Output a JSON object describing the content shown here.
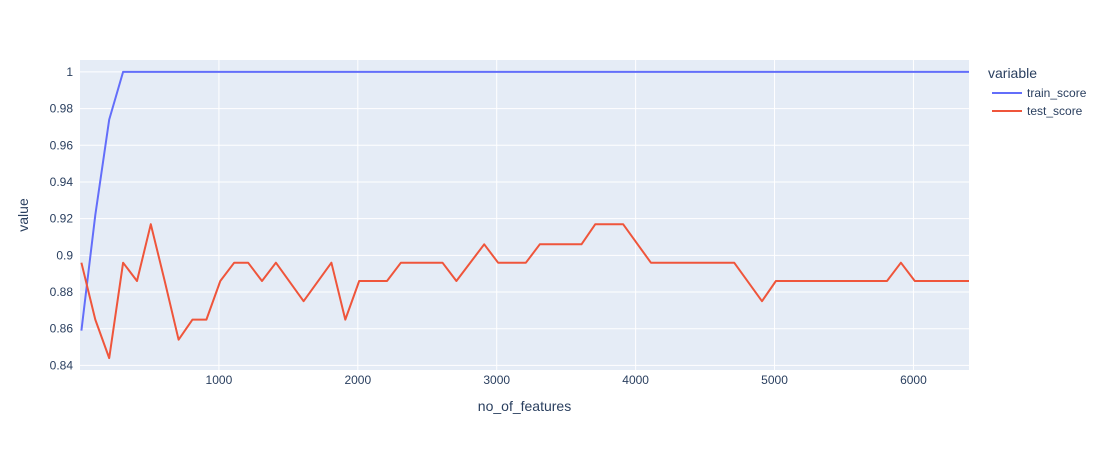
{
  "chart_data": {
    "type": "line",
    "xlabel": "no_of_features",
    "ylabel": "value",
    "xlim": [
      0,
      6400
    ],
    "ylim": [
      0.8375,
      1.0065
    ],
    "xticks": [
      1000,
      2000,
      3000,
      4000,
      5000,
      6000
    ],
    "xtick_labels": [
      "1000",
      "2000",
      "3000",
      "4000",
      "5000",
      "6000"
    ],
    "yticks": [
      0.84,
      0.86,
      0.88,
      0.9,
      0.92,
      0.94,
      0.96,
      0.98,
      1
    ],
    "ytick_labels": [
      "0.84",
      "0.86",
      "0.88",
      "0.9",
      "0.92",
      "0.94",
      "0.96",
      "0.98",
      "1"
    ],
    "grid": true,
    "background": "#e5ecf6",
    "legend": {
      "title": "variable",
      "position": "right"
    },
    "series": [
      {
        "name": "train_score",
        "color": "#636efa",
        "points": [
          [
            10,
            0.859
          ],
          [
            110,
            0.922
          ],
          [
            210,
            0.974
          ],
          [
            310,
            1.0
          ],
          [
            6400,
            1.0
          ]
        ]
      },
      {
        "name": "test_score",
        "color": "#ef553b",
        "points": [
          [
            10,
            0.896
          ],
          [
            110,
            0.865
          ],
          [
            210,
            0.844
          ],
          [
            310,
            0.896
          ],
          [
            410,
            0.886
          ],
          [
            510,
            0.917
          ],
          [
            610,
            0.886
          ],
          [
            710,
            0.854
          ],
          [
            810,
            0.865
          ],
          [
            910,
            0.865
          ],
          [
            1010,
            0.886
          ],
          [
            1110,
            0.896
          ],
          [
            1210,
            0.896
          ],
          [
            1310,
            0.886
          ],
          [
            1410,
            0.896
          ],
          [
            1610,
            0.875
          ],
          [
            1810,
            0.896
          ],
          [
            1910,
            0.865
          ],
          [
            2010,
            0.886
          ],
          [
            2210,
            0.886
          ],
          [
            2310,
            0.896
          ],
          [
            2610,
            0.896
          ],
          [
            2710,
            0.886
          ],
          [
            2910,
            0.906
          ],
          [
            3010,
            0.896
          ],
          [
            3210,
            0.896
          ],
          [
            3310,
            0.906
          ],
          [
            3610,
            0.906
          ],
          [
            3710,
            0.917
          ],
          [
            3910,
            0.917
          ],
          [
            4110,
            0.896
          ],
          [
            4710,
            0.896
          ],
          [
            4910,
            0.875
          ],
          [
            5010,
            0.886
          ],
          [
            5810,
            0.886
          ],
          [
            5910,
            0.896
          ],
          [
            6010,
            0.886
          ],
          [
            6400,
            0.886
          ]
        ]
      }
    ]
  }
}
